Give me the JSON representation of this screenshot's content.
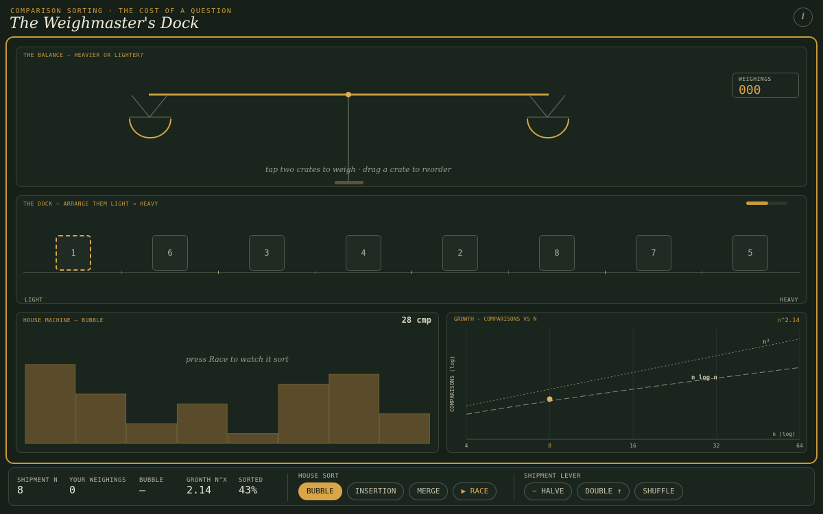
{
  "header": {
    "kicker": "COMPARISON SORTING · THE COST OF A QUESTION",
    "title": "The Weighmaster's Dock",
    "info": "i"
  },
  "balance": {
    "label": "THE BALANCE — HEAVIER OR LIGHTER?",
    "hint": "tap two crates to weigh · drag a crate to reorder",
    "counter_label": "WEIGHINGS",
    "counter": "000"
  },
  "dock": {
    "label": "THE DOCK — ARRANGE THEM LIGHT → HEAVY",
    "crates": [
      "1",
      "6",
      "3",
      "4",
      "2",
      "8",
      "7",
      "5"
    ],
    "left": "LIGHT",
    "right": "HEAVY"
  },
  "machine": {
    "label": "HOUSE MACHINE — BUBBLE",
    "count": "28 cmp",
    "hint": "press Race to watch it sort",
    "bars": [
      8,
      5,
      2,
      4,
      1,
      6,
      7,
      3
    ]
  },
  "growth": {
    "label": "GROWTH — COMPARISONS VS N",
    "exponent": "n^2.14",
    "x_label": "n (log)",
    "y_label": "COMPARISONS (log)",
    "xlim": [
      4,
      64
    ],
    "xticks": [
      4,
      8,
      16,
      32,
      64
    ],
    "ylim": [
      1,
      10000
    ],
    "log": true,
    "curves": [
      "n²",
      "n log n"
    ],
    "point": {
      "n": 8,
      "comparisons": 28
    }
  },
  "footer": {
    "stats": [
      {
        "label": "SHIPMENT N",
        "value": "8"
      },
      {
        "label": "YOUR WEIGHINGS",
        "value": "0"
      },
      {
        "label": "BUBBLE",
        "value": "—"
      },
      {
        "label": "GROWTH N^X",
        "value": "2.14"
      },
      {
        "label": "SORTED",
        "value": "43%"
      }
    ],
    "house_sort": {
      "label": "HOUSE SORT",
      "buttons": [
        "BUBBLE",
        "INSERTION",
        "MERGE",
        "▶ RACE"
      ]
    },
    "lever": {
      "label": "SHIPMENT LEVER",
      "buttons": [
        "− HALVE",
        "DOUBLE ↑",
        "SHUFFLE"
      ]
    }
  }
}
